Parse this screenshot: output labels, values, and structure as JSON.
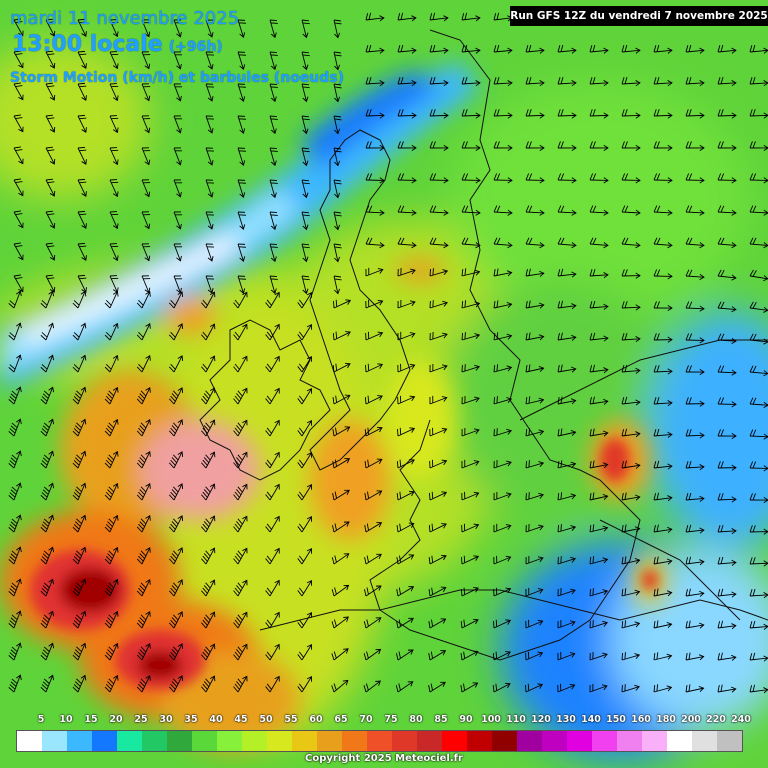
{
  "header": {
    "date": "mardi 11 novembre 2025",
    "time": "13:00 locale",
    "offset": "(+96h)",
    "subtitle": "Storm Motion (km/h) et barbules (noeuds)",
    "run": "Run GFS 12Z du vendredi 7 novembre 2025"
  },
  "legend": {
    "labels": [
      "5",
      "10",
      "15",
      "20",
      "25",
      "30",
      "35",
      "40",
      "45",
      "50",
      "55",
      "60",
      "65",
      "70",
      "75",
      "80",
      "85",
      "90",
      "100",
      "110",
      "120",
      "130",
      "140",
      "150",
      "160",
      "180",
      "200",
      "220",
      "240"
    ],
    "colors": [
      "#ffffff",
      "#9ae6ff",
      "#3cb8ff",
      "#1478ff",
      "#18e8a0",
      "#22c864",
      "#30a83c",
      "#5ad83a",
      "#86f03a",
      "#b4f026",
      "#d8e81e",
      "#e8c814",
      "#e8a01c",
      "#f07818",
      "#f05028",
      "#e03828",
      "#c82828",
      "#ff0000",
      "#c00000",
      "#900000",
      "#a000a0",
      "#c000c0",
      "#e000e0",
      "#f040f0",
      "#f080f0",
      "#f8b0f8",
      "#ffffff",
      "#e0e0e0",
      "#c0c0c0"
    ]
  },
  "copyright": "Copyright 2025 Meteociel.fr",
  "colors": {
    "title": "#22a0ff",
    "map_base": "#5fd33a"
  }
}
